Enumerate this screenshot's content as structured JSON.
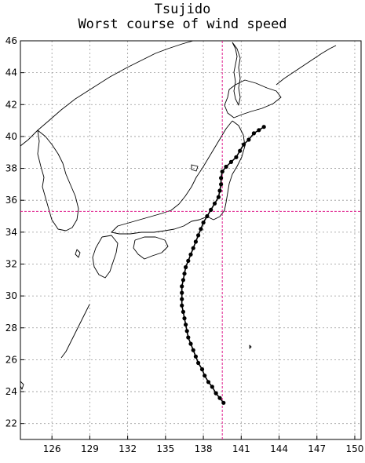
{
  "title": {
    "line1": "Tsujido",
    "line2": "Worst course of wind speed"
  },
  "map": {
    "lon_range": [
      123.5,
      150.5
    ],
    "lat_range": [
      21,
      46
    ],
    "x_ticks": [
      126,
      129,
      132,
      135,
      138,
      141,
      144,
      147,
      150
    ],
    "y_ticks": [
      22,
      24,
      26,
      28,
      30,
      32,
      34,
      36,
      38,
      40,
      42,
      44,
      46
    ],
    "grid": true,
    "crosshair": {
      "lon": 139.5,
      "lat": 35.3,
      "color": "#e0208e"
    },
    "coastline_color": "#000000",
    "track_color": "#000000"
  },
  "chart_data": {
    "type": "scatter",
    "title": "Tsujido\nWorst course of wind speed",
    "xlabel": "",
    "ylabel": "",
    "xlim": [
      123.5,
      150.5
    ],
    "ylim": [
      21,
      46
    ],
    "grid": true,
    "series": [
      {
        "points": [
          [
            139.6,
            23.3
          ],
          [
            139.3,
            23.6
          ],
          [
            139.0,
            23.9
          ],
          [
            138.7,
            24.3
          ],
          [
            138.4,
            24.6
          ],
          [
            138.1,
            25.0
          ],
          [
            137.9,
            25.4
          ],
          [
            137.6,
            25.8
          ],
          [
            137.4,
            26.2
          ],
          [
            137.2,
            26.6
          ],
          [
            137.0,
            27.0
          ],
          [
            136.8,
            27.4
          ],
          [
            136.7,
            27.8
          ],
          [
            136.6,
            28.2
          ],
          [
            136.5,
            28.6
          ],
          [
            136.4,
            29.0
          ],
          [
            136.3,
            29.4
          ],
          [
            136.3,
            29.8
          ],
          [
            136.3,
            30.2
          ],
          [
            136.3,
            30.6
          ],
          [
            136.4,
            31.0
          ],
          [
            136.5,
            31.4
          ],
          [
            136.6,
            31.8
          ],
          [
            136.8,
            32.2
          ],
          [
            137.0,
            32.6
          ],
          [
            137.2,
            33.0
          ],
          [
            137.4,
            33.4
          ],
          [
            137.6,
            33.8
          ],
          [
            137.8,
            34.2
          ],
          [
            138.0,
            34.6
          ],
          [
            138.3,
            35.0
          ],
          [
            138.6,
            35.4
          ],
          [
            138.9,
            35.8
          ],
          [
            139.2,
            36.2
          ],
          [
            139.3,
            36.6
          ],
          [
            139.4,
            37.0
          ],
          [
            139.4,
            37.4
          ],
          [
            139.5,
            37.8
          ],
          [
            139.8,
            38.1
          ],
          [
            140.2,
            38.4
          ],
          [
            140.6,
            38.7
          ],
          [
            140.9,
            39.1
          ],
          [
            141.2,
            39.5
          ],
          [
            141.6,
            39.8
          ],
          [
            142.0,
            40.2
          ],
          [
            142.4,
            40.4
          ],
          [
            142.8,
            40.6
          ]
        ]
      }
    ]
  }
}
